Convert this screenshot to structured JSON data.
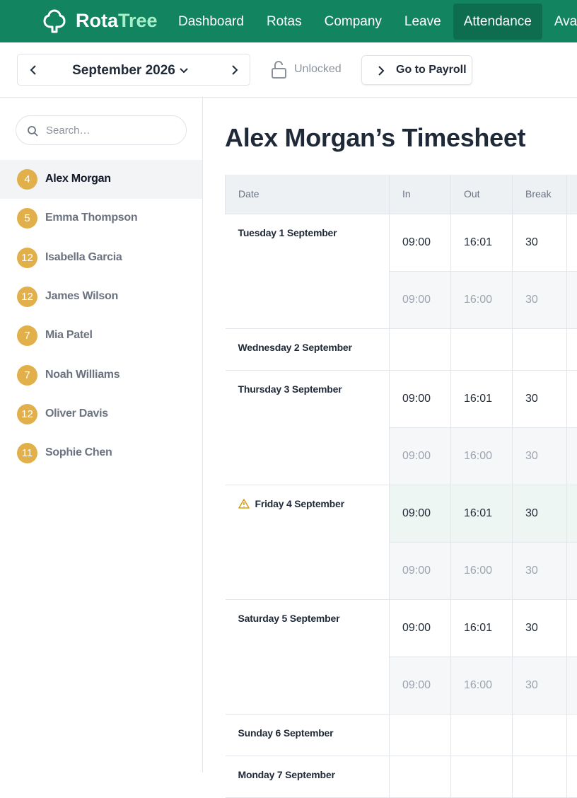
{
  "header": {
    "brand_a": "Rota",
    "brand_b": "Tree",
    "nav": [
      "Dashboard",
      "Rotas",
      "Company",
      "Leave",
      "Attendance",
      "Availability"
    ]
  },
  "toolbar": {
    "month": "September 2026",
    "lock_status": "Unlocked",
    "payroll_button": "Go to Payroll"
  },
  "sidebar": {
    "search_placeholder": "Search…",
    "staff": [
      {
        "count": 4,
        "name": "Alex Morgan"
      },
      {
        "count": 5,
        "name": "Emma Thompson"
      },
      {
        "count": 12,
        "name": "Isabella Garcia"
      },
      {
        "count": 12,
        "name": "James Wilson"
      },
      {
        "count": 7,
        "name": "Mia Patel"
      },
      {
        "count": 7,
        "name": "Noah Williams"
      },
      {
        "count": 12,
        "name": "Oliver Davis"
      },
      {
        "count": 11,
        "name": "Sophie Chen"
      }
    ]
  },
  "timesheet": {
    "title": "Alex Morgan’s Timesheet",
    "columns": [
      "Date",
      "In",
      "Out",
      "Break"
    ],
    "days": [
      {
        "date": "Tuesday 1 September",
        "rows": [
          [
            "09:00",
            "16:01",
            "30"
          ],
          [
            "09:00",
            "16:00",
            "30"
          ]
        ]
      },
      {
        "date": "Wednesday 2 September",
        "rows": []
      },
      {
        "date": "Thursday 3 September",
        "rows": [
          [
            "09:00",
            "16:01",
            "30"
          ],
          [
            "09:00",
            "16:00",
            "30"
          ]
        ]
      },
      {
        "date": "Friday 4 September",
        "warning": true,
        "rows": [
          [
            "09:00",
            "16:01",
            "30"
          ],
          [
            "09:00",
            "16:00",
            "30"
          ]
        ]
      },
      {
        "date": "Saturday 5 September",
        "rows": [
          [
            "09:00",
            "16:01",
            "30"
          ],
          [
            "09:00",
            "16:00",
            "30"
          ]
        ]
      },
      {
        "date": "Sunday 6 September",
        "rows": []
      },
      {
        "date": "Monday 7 September",
        "rows": []
      }
    ]
  }
}
